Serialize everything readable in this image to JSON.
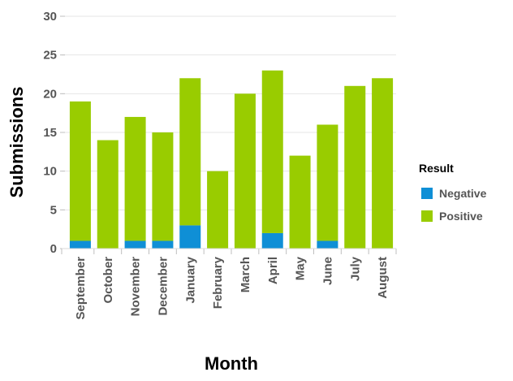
{
  "chart_data": {
    "type": "bar",
    "stacked": true,
    "categories": [
      "September",
      "October",
      "November",
      "December",
      "January",
      "February",
      "March",
      "April",
      "May",
      "June",
      "July",
      "August"
    ],
    "series": [
      {
        "name": "Negative",
        "color": "#0f8fd6",
        "values": [
          1,
          0,
          1,
          1,
          3,
          0,
          0,
          2,
          0,
          1,
          0,
          0
        ]
      },
      {
        "name": "Positive",
        "color": "#99cc00",
        "values": [
          18,
          14,
          16,
          14,
          19,
          10,
          20,
          21,
          12,
          15,
          21,
          22
        ]
      }
    ],
    "xlabel": "Month",
    "ylabel": "Submissions",
    "ylim": [
      0,
      30
    ],
    "yticks": [
      "0",
      "5",
      "10",
      "15",
      "20",
      "25",
      "30"
    ],
    "legend": {
      "title": "Result",
      "position": "right"
    },
    "grid": true
  }
}
